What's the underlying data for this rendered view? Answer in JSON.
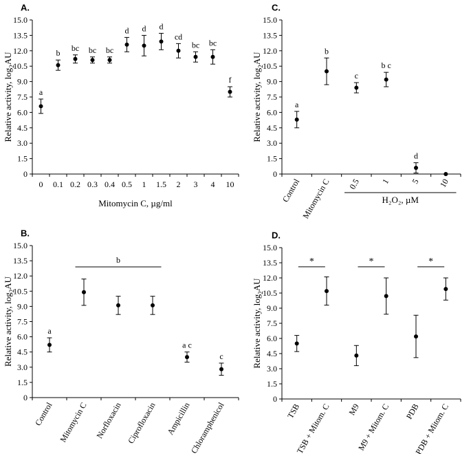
{
  "chart_data": [
    {
      "panel": "A.",
      "type": "scatter",
      "xlabel": "Mitomycin C, µg/ml",
      "ylabel_main": "Relative activity, log",
      "ylabel_sub": "2",
      "ylabel_tail": "AU",
      "ylim": [
        0,
        15
      ],
      "yticks": [
        "0",
        "1.5",
        "3.0",
        "4.5",
        "6.0",
        "7.5",
        "9.0",
        "10.5",
        "12.0",
        "13.5",
        "15.0"
      ],
      "categories": [
        "0",
        "0.1",
        "0.2",
        "0.3",
        "0.4",
        "0.5",
        "1",
        "1.5",
        "2",
        "3",
        "4",
        "10"
      ],
      "values": [
        6.6,
        10.6,
        11.2,
        11.1,
        11.1,
        12.6,
        12.5,
        12.9,
        12.0,
        11.4,
        11.4,
        8.0
      ],
      "errors": [
        0.7,
        0.5,
        0.4,
        0.3,
        0.3,
        0.7,
        1.0,
        0.8,
        0.7,
        0.5,
        0.7,
        0.5
      ],
      "letters": [
        "a",
        "b",
        "bc",
        "bc",
        "bc",
        "d",
        "d",
        "d",
        "cd",
        "bc",
        "bc",
        "f"
      ]
    },
    {
      "panel": "B.",
      "type": "scatter",
      "ylabel_main": "Relative activity, log",
      "ylabel_sub": "2",
      "ylabel_tail": "AU",
      "ylim": [
        0,
        15
      ],
      "yticks": [
        "0",
        "1.5",
        "3.0",
        "4.5",
        "6.0",
        "7.5",
        "9.0",
        "10.5",
        "12.0",
        "13.5",
        "15.0"
      ],
      "categories": [
        "Control",
        "Mitomycin C",
        "Norfloxacin",
        "Ciprofloxacin",
        "Ampicillin",
        "Chloramphenicol"
      ],
      "values": [
        5.2,
        10.4,
        9.1,
        9.1,
        4.0,
        2.8
      ],
      "errors": [
        0.7,
        1.3,
        0.9,
        0.9,
        0.5,
        0.6
      ],
      "letters": [
        "a",
        "",
        "",
        "",
        "a c",
        "c"
      ],
      "group_annotation": {
        "label": "b",
        "from": 1,
        "to": 3,
        "y": 12.9
      }
    },
    {
      "panel": "C.",
      "type": "scatter",
      "xlabel_group": "H₂O₂, µM",
      "ylabel_main": "Relative activity, log",
      "ylabel_sub": "2",
      "ylabel_tail": "AU",
      "ylim": [
        0,
        15
      ],
      "yticks": [
        "0",
        "1.5",
        "3.0",
        "4.5",
        "6.0",
        "7.5",
        "9.0",
        "10.5",
        "12.0",
        "13.5",
        "15.0"
      ],
      "categories": [
        "Control",
        "Mitomycin C",
        "0.5",
        "1",
        "5",
        "10"
      ],
      "values": [
        5.3,
        10.0,
        8.4,
        9.2,
        0.6,
        0.0
      ],
      "errors": [
        0.8,
        1.3,
        0.5,
        0.7,
        0.5,
        0.0
      ],
      "letters": [
        "a",
        "b",
        "c",
        "b c",
        "d",
        ""
      ]
    },
    {
      "panel": "D.",
      "type": "scatter",
      "ylabel_main": "Relative activity, log",
      "ylabel_sub": "2",
      "ylabel_tail": "AU",
      "ylim": [
        0,
        15
      ],
      "yticks": [
        "0",
        "1.5",
        "3.0",
        "4.5",
        "6.0",
        "7.5",
        "9.0",
        "10.5",
        "12.0",
        "13.5",
        "15.0"
      ],
      "categories": [
        "TSB",
        "TSB + Mitom. C",
        "M9",
        "M9 + Mitom. C",
        "PDB",
        "PDB + Mitom. C"
      ],
      "values": [
        5.5,
        10.7,
        4.3,
        10.2,
        6.2,
        10.9
      ],
      "errors": [
        0.8,
        1.4,
        1.0,
        1.8,
        2.1,
        1.1
      ],
      "significance": [
        {
          "label": "*",
          "from": 0,
          "to": 1,
          "y": 13.1
        },
        {
          "label": "*",
          "from": 2,
          "to": 3,
          "y": 13.1
        },
        {
          "label": "*",
          "from": 4,
          "to": 5,
          "y": 13.1
        }
      ]
    }
  ]
}
